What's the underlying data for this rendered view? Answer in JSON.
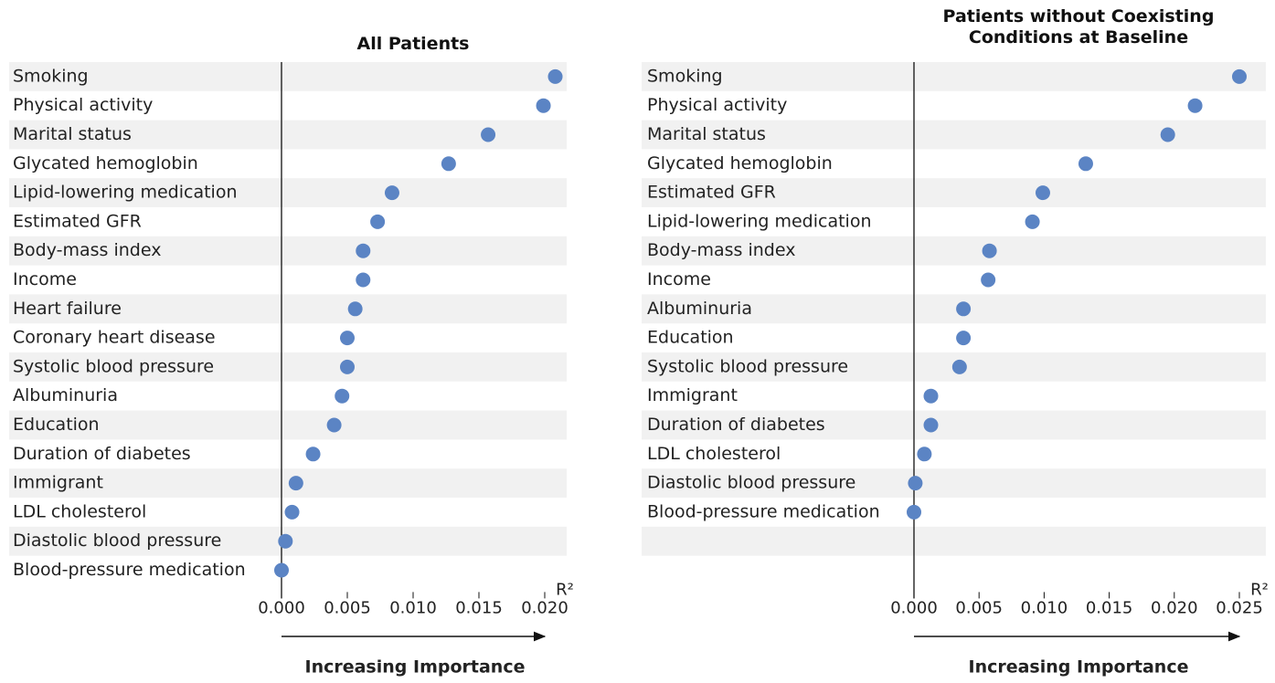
{
  "chart_data": [
    {
      "type": "dot",
      "title": "All Patients",
      "x_label": "R²",
      "arrow_label": "Increasing Importance",
      "color": "#5b84c4",
      "categories": [
        "Smoking",
        "Physical activity",
        "Marital status",
        "Glycated hemoglobin",
        "Lipid-lowering medication",
        "Estimated GFR",
        "Body-mass index",
        "Income",
        "Heart failure",
        "Coronary heart disease",
        "Systolic blood pressure",
        "Albuminuria",
        "Education",
        "Duration of diabetes",
        "Immigrant",
        "LDL cholesterol",
        "Diastolic blood pressure",
        "Blood-pressure medication"
      ],
      "values": [
        0.0208,
        0.0199,
        0.0157,
        0.0127,
        0.0084,
        0.0073,
        0.0062,
        0.0062,
        0.0056,
        0.005,
        0.005,
        0.0046,
        0.004,
        0.0024,
        0.0011,
        0.0008,
        0.0003,
        0.0
      ],
      "xlim": [
        0,
        0.02
      ],
      "xticks": [
        {
          "value": 0,
          "label": "0.000"
        },
        {
          "value": 0.005,
          "label": "0.005"
        },
        {
          "value": 0.01,
          "label": "0.010"
        },
        {
          "value": 0.015,
          "label": "0.015"
        },
        {
          "value": 0.02,
          "label": "0.020"
        }
      ]
    },
    {
      "type": "dot",
      "title": "Patients without Coexisting Conditions at Baseline",
      "x_label": "R²",
      "arrow_label": "Increasing Importance",
      "color": "#5b84c4",
      "categories": [
        "Smoking",
        "Physical activity",
        "Marital status",
        "Glycated hemoglobin",
        "Estimated GFR",
        "Lipid-lowering medication",
        "Body-mass index",
        "Income",
        "Albuminuria",
        "Education",
        "Systolic blood pressure",
        "Immigrant",
        "Duration of diabetes",
        "LDL cholesterol",
        "Diastolic blood pressure",
        "Blood-pressure medication"
      ],
      "values": [
        0.025,
        0.0216,
        0.0195,
        0.0132,
        0.0099,
        0.0091,
        0.0058,
        0.0057,
        0.0038,
        0.0038,
        0.0035,
        0.0013,
        0.0013,
        0.0008,
        0.0001,
        0.0
      ],
      "xlim": [
        0,
        0.025
      ],
      "xticks": [
        {
          "value": 0,
          "label": "0.000"
        },
        {
          "value": 0.005,
          "label": "0.005"
        },
        {
          "value": 0.01,
          "label": "0.010"
        },
        {
          "value": 0.015,
          "label": "0.015"
        },
        {
          "value": 0.02,
          "label": "0.020"
        },
        {
          "value": 0.025,
          "label": "0.025"
        }
      ]
    }
  ]
}
